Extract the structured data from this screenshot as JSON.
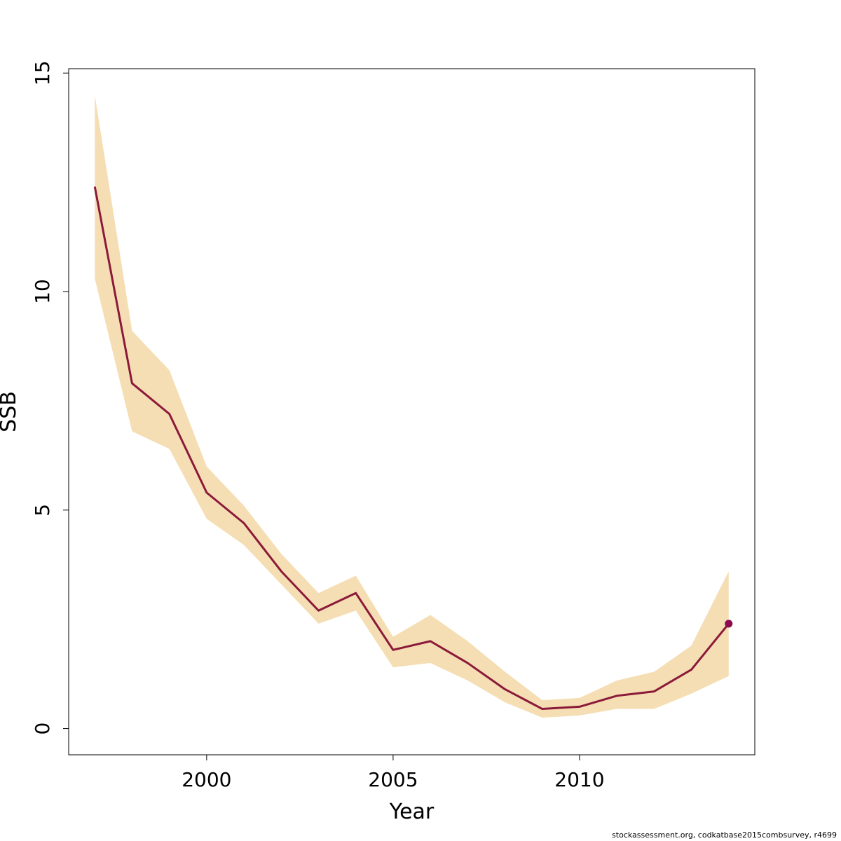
{
  "chart_data": {
    "type": "line",
    "title": "",
    "xlabel": "Year",
    "ylabel": "SSB",
    "xlim": [
      1996.3,
      2014.7
    ],
    "ylim": [
      -0.6,
      15.1
    ],
    "x_ticks": [
      2000,
      2005,
      2010
    ],
    "y_ticks": [
      0,
      5,
      10,
      15
    ],
    "grid": false,
    "legend": "none",
    "series": [
      {
        "x": [
          1997,
          1998,
          1999,
          2000,
          2001,
          2002,
          2003,
          2004,
          2005,
          2006,
          2007,
          2008,
          2009,
          2010,
          2011,
          2012,
          2013,
          2014
        ],
        "values": [
          12.4,
          7.9,
          7.2,
          5.4,
          4.7,
          3.6,
          2.7,
          3.1,
          1.8,
          2.0,
          1.5,
          0.9,
          0.45,
          0.5,
          0.75,
          0.85,
          1.35,
          2.4
        ],
        "lower": [
          10.3,
          6.8,
          6.4,
          4.8,
          4.2,
          3.3,
          2.4,
          2.7,
          1.4,
          1.5,
          1.1,
          0.6,
          0.25,
          0.3,
          0.45,
          0.45,
          0.8,
          1.2
        ],
        "upper": [
          14.5,
          9.1,
          8.2,
          6.0,
          5.1,
          4.0,
          3.1,
          3.5,
          2.1,
          2.6,
          2.0,
          1.3,
          0.65,
          0.7,
          1.1,
          1.3,
          1.9,
          3.6
        ],
        "last_point_marked": true
      }
    ],
    "colors": {
      "band": "#F5DEB3",
      "line": "#8B1A3A",
      "point": "#8B0A50"
    }
  },
  "footnote": "stockassessment.org, codkatbase2015combsurvey, r4699"
}
